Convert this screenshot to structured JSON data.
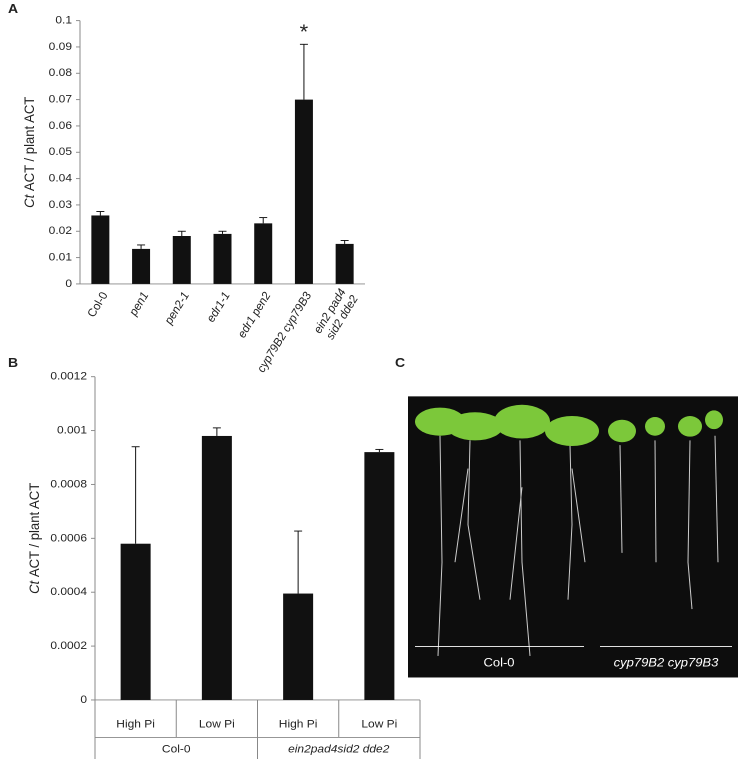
{
  "panel_labels": [
    "A",
    "B",
    "C"
  ],
  "chart_data": [
    {
      "type": "bar",
      "y_label": [
        "Ct",
        "ACT / plant ACT"
      ],
      "categories": [
        "Col-0",
        "pen1",
        "pen2-1",
        "edr1-1",
        "edr1 pen2",
        "cyp79B2 cyp79B3",
        [
          "ein2 pad4",
          "sid2 dde2"
        ]
      ],
      "values": [
        0.026,
        0.0133,
        0.0182,
        0.019,
        0.023,
        0.07,
        0.0152
      ],
      "errors": [
        0.0015,
        0.0015,
        0.0018,
        0.001,
        0.0022,
        0.021,
        0.0013
      ],
      "color": "#111111",
      "ylim": [
        0,
        0.1
      ],
      "yticks": [
        0,
        0.01,
        0.02,
        0.03,
        0.04,
        0.05,
        0.06,
        0.07,
        0.08,
        0.09,
        0.1
      ],
      "annotations": [
        {
          "text": "*",
          "x": "cyp79B2 cyp79B3"
        }
      ]
    },
    {
      "type": "bar",
      "y_label": [
        "Ct",
        "ACT / plant ACT"
      ],
      "categories": [
        "High Pi",
        "Low Pi",
        "High Pi",
        "Low Pi"
      ],
      "groups": [
        "Col-0",
        "ein2pad4sid2 dde2"
      ],
      "values": [
        0.00058,
        0.00098,
        0.000395,
        0.00092
      ],
      "errors": [
        0.00036,
        3e-05,
        0.000232,
        1e-05
      ],
      "color": "#111111",
      "ylim": [
        0,
        0.0012
      ],
      "yticks": [
        0,
        0.0002,
        0.0004,
        0.0006,
        0.0008,
        0.001,
        0.0012
      ]
    }
  ],
  "photo": {
    "captions": [
      "Col-0",
      "cyp79B2 cyp79B3"
    ]
  }
}
